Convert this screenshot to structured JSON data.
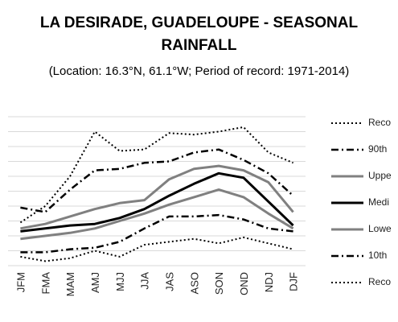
{
  "chart_data": {
    "type": "line",
    "title_line1": "LA DESIRADE, GUADELOUPE - SEASONAL",
    "title_line2": "RAINFALL",
    "subtitle": "(Location: 16.3°N, 61.1°W; Period of record: 1971-2014)",
    "categories": [
      "JFM",
      "FMA",
      "MAM",
      "AMJ",
      "MJJ",
      "JJA",
      "JAS",
      "ASO",
      "SON",
      "OND",
      "NDJ",
      "DJF"
    ],
    "ylim": [
      0,
      10
    ],
    "grid": true,
    "legend_position": "right",
    "series": [
      {
        "name": "Reco",
        "style": "dotted",
        "color": "#000000",
        "width": 2,
        "values": [
          2.9,
          4.0,
          6.0,
          9.0,
          7.7,
          7.8,
          8.9,
          8.8,
          9.0,
          9.3,
          7.6,
          6.9
        ]
      },
      {
        "name": "90th",
        "style": "dashdot",
        "color": "#000000",
        "width": 2.5,
        "values": [
          3.9,
          3.6,
          5.1,
          6.4,
          6.5,
          6.9,
          7.0,
          7.6,
          7.8,
          7.1,
          6.2,
          4.7
        ]
      },
      {
        "name": "Uppe",
        "style": "solid",
        "color": "#808080",
        "width": 3,
        "values": [
          2.5,
          2.8,
          3.3,
          3.8,
          4.2,
          4.4,
          5.8,
          6.5,
          6.7,
          6.4,
          5.6,
          3.6
        ]
      },
      {
        "name": "Medi",
        "style": "solid",
        "color": "#000000",
        "width": 3,
        "values": [
          2.3,
          2.5,
          2.7,
          2.8,
          3.2,
          3.8,
          4.7,
          5.5,
          6.2,
          5.9,
          4.3,
          2.7
        ]
      },
      {
        "name": "Lowe",
        "style": "solid",
        "color": "#808080",
        "width": 3,
        "values": [
          1.8,
          2.0,
          2.2,
          2.5,
          3.0,
          3.5,
          4.1,
          4.6,
          5.1,
          4.6,
          3.5,
          2.5
        ]
      },
      {
        "name": "10th",
        "style": "dashdot",
        "color": "#000000",
        "width": 2.5,
        "values": [
          0.9,
          0.9,
          1.1,
          1.2,
          1.6,
          2.5,
          3.3,
          3.3,
          3.4,
          3.1,
          2.5,
          2.3
        ]
      },
      {
        "name": "Reco",
        "style": "dotted",
        "color": "#000000",
        "width": 2,
        "values": [
          0.6,
          0.3,
          0.5,
          1.0,
          0.6,
          1.4,
          1.6,
          1.8,
          1.5,
          1.9,
          1.5,
          1.1
        ]
      }
    ]
  }
}
